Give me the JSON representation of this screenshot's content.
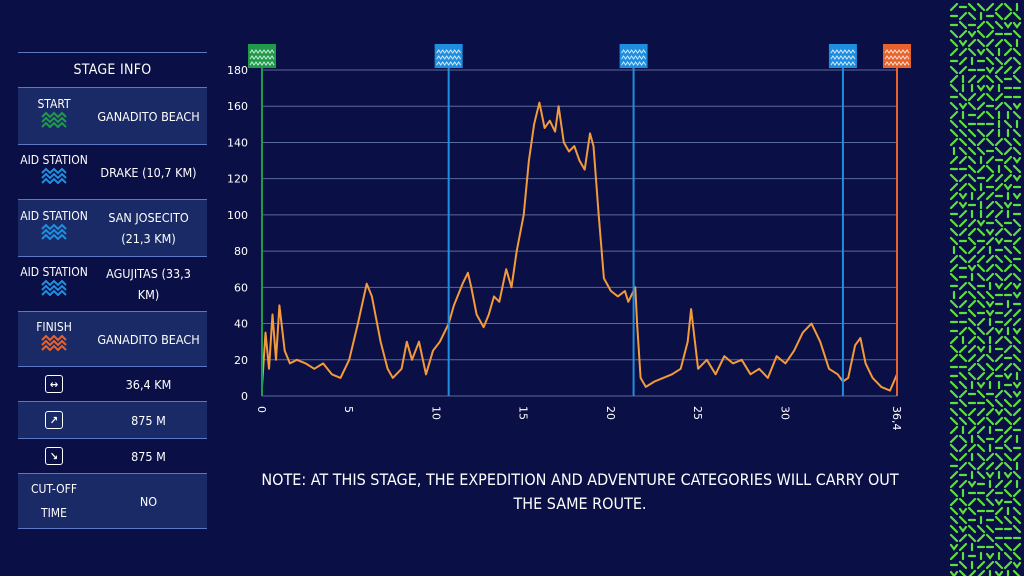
{
  "stage_info": {
    "title": "STAGE INFO",
    "rows": [
      {
        "label": "START",
        "value": "GANADITO BEACH",
        "icon": "green-wave-icon"
      },
      {
        "label": "AID STATION",
        "value": "DRAKE (10,7 KM)",
        "icon": "blue-wave-icon"
      },
      {
        "label": "AID STATION",
        "value": "SAN JOSECITO (21,3 KM)",
        "icon": "blue-wave-icon"
      },
      {
        "label": "AID STATION",
        "value": "AGUJITAS (33,3 KM)",
        "icon": "blue-wave-icon"
      },
      {
        "label": "FINISH",
        "value": "GANADITO BEACH",
        "icon": "orange-wave-icon"
      },
      {
        "label": "",
        "value": "36,4 KM",
        "icon": "distance-arrows-icon"
      },
      {
        "label": "",
        "value": "875 M",
        "icon": "ascent-arrow-icon"
      },
      {
        "label": "",
        "value": "875 M",
        "icon": "descent-arrow-icon"
      },
      {
        "label": "CUT-OFF TIME",
        "value": "NO",
        "icon": ""
      }
    ]
  },
  "note": "NOTE: AT THIS STAGE, THE EXPEDITION AND ADVENTURE CATEGORIES WILL CARRY OUT THE SAME ROUTE.",
  "colors": {
    "background": "#0a0f45",
    "profile": "#f39a3a",
    "start": "#1f9a4a",
    "aid": "#1e8fe0",
    "finish": "#e8622b",
    "grid": "#5a6a9a",
    "pattern": "#5ce03a"
  },
  "chart_data": {
    "type": "area",
    "title": "",
    "xlabel": "",
    "ylabel": "",
    "xlim": [
      0,
      36.4
    ],
    "ylim": [
      0,
      180
    ],
    "xticks": [
      "0",
      "5",
      "10",
      "15",
      "20",
      "25",
      "30",
      "36,4"
    ],
    "xtick_values": [
      0,
      5,
      10,
      15,
      20,
      25,
      30,
      36.4
    ],
    "yticks": [
      0,
      20,
      40,
      60,
      80,
      100,
      120,
      140,
      160,
      180
    ],
    "grid": true,
    "markers": [
      {
        "name": "START",
        "x": 0,
        "color": "#1f9a4a"
      },
      {
        "name": "DRAKE",
        "x": 10.7,
        "color": "#1e8fe0"
      },
      {
        "name": "SAN JOSECITO",
        "x": 21.3,
        "color": "#1e8fe0"
      },
      {
        "name": "AGUJITAS",
        "x": 33.3,
        "color": "#1e8fe0"
      },
      {
        "name": "FINISH",
        "x": 36.4,
        "color": "#e8622b"
      }
    ],
    "series": [
      {
        "points": [
          [
            0.0,
            5
          ],
          [
            0.2,
            35
          ],
          [
            0.4,
            15
          ],
          [
            0.6,
            45
          ],
          [
            0.8,
            20
          ],
          [
            1.0,
            50
          ],
          [
            1.3,
            25
          ],
          [
            1.6,
            18
          ],
          [
            2.0,
            20
          ],
          [
            2.5,
            18
          ],
          [
            3.0,
            15
          ],
          [
            3.5,
            18
          ],
          [
            4.0,
            12
          ],
          [
            4.5,
            10
          ],
          [
            5.0,
            20
          ],
          [
            5.5,
            40
          ],
          [
            6.0,
            62
          ],
          [
            6.3,
            55
          ],
          [
            6.8,
            30
          ],
          [
            7.2,
            15
          ],
          [
            7.5,
            10
          ],
          [
            8.0,
            15
          ],
          [
            8.3,
            30
          ],
          [
            8.6,
            20
          ],
          [
            9.0,
            30
          ],
          [
            9.4,
            12
          ],
          [
            9.8,
            25
          ],
          [
            10.2,
            30
          ],
          [
            10.7,
            40
          ],
          [
            11.0,
            50
          ],
          [
            11.5,
            62
          ],
          [
            11.8,
            68
          ],
          [
            12.0,
            60
          ],
          [
            12.3,
            45
          ],
          [
            12.7,
            38
          ],
          [
            13.0,
            45
          ],
          [
            13.3,
            55
          ],
          [
            13.6,
            52
          ],
          [
            14.0,
            70
          ],
          [
            14.3,
            60
          ],
          [
            14.6,
            80
          ],
          [
            15.0,
            100
          ],
          [
            15.3,
            130
          ],
          [
            15.6,
            150
          ],
          [
            15.9,
            162
          ],
          [
            16.2,
            148
          ],
          [
            16.5,
            152
          ],
          [
            16.8,
            146
          ],
          [
            17.0,
            160
          ],
          [
            17.3,
            140
          ],
          [
            17.6,
            135
          ],
          [
            17.9,
            138
          ],
          [
            18.2,
            130
          ],
          [
            18.5,
            125
          ],
          [
            18.8,
            145
          ],
          [
            19.0,
            138
          ],
          [
            19.3,
            100
          ],
          [
            19.6,
            65
          ],
          [
            20.0,
            58
          ],
          [
            20.4,
            55
          ],
          [
            20.8,
            58
          ],
          [
            21.0,
            52
          ],
          [
            21.4,
            60
          ],
          [
            21.5,
            40
          ],
          [
            21.7,
            10
          ],
          [
            22.0,
            5
          ],
          [
            22.5,
            8
          ],
          [
            23.0,
            10
          ],
          [
            23.5,
            12
          ],
          [
            24.0,
            15
          ],
          [
            24.4,
            30
          ],
          [
            24.6,
            48
          ],
          [
            25.0,
            15
          ],
          [
            25.5,
            20
          ],
          [
            26.0,
            12
          ],
          [
            26.5,
            22
          ],
          [
            27.0,
            18
          ],
          [
            27.5,
            20
          ],
          [
            28.0,
            12
          ],
          [
            28.5,
            15
          ],
          [
            29.0,
            10
          ],
          [
            29.5,
            22
          ],
          [
            30.0,
            18
          ],
          [
            30.5,
            25
          ],
          [
            31.0,
            35
          ],
          [
            31.5,
            40
          ],
          [
            32.0,
            30
          ],
          [
            32.5,
            15
          ],
          [
            33.0,
            12
          ],
          [
            33.3,
            8
          ],
          [
            33.6,
            10
          ],
          [
            34.0,
            28
          ],
          [
            34.3,
            32
          ],
          [
            34.6,
            18
          ],
          [
            35.0,
            10
          ],
          [
            35.5,
            5
          ],
          [
            36.0,
            3
          ],
          [
            36.4,
            12
          ]
        ]
      }
    ]
  }
}
